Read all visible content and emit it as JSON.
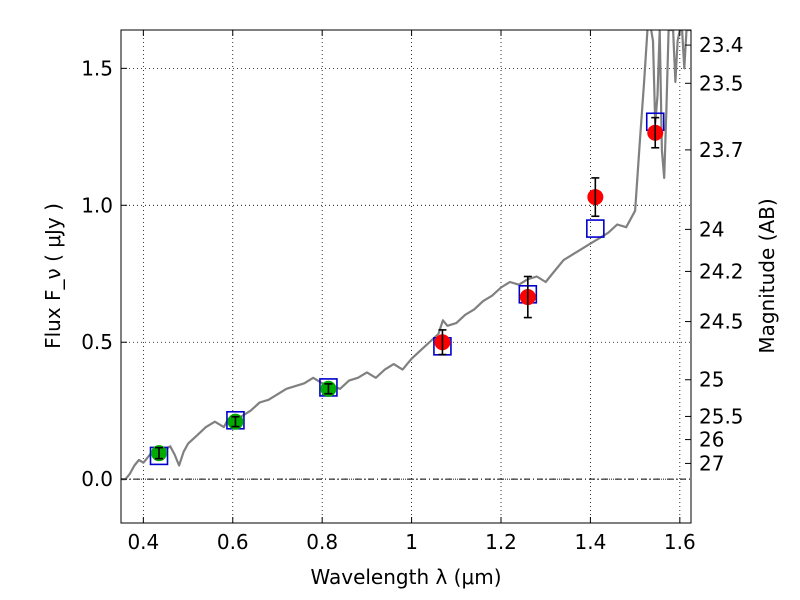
{
  "chart_data": {
    "type": "scatter",
    "xlabel": "Wavelength  λ (μm)",
    "ylabel": "Flux  F_ν  ( μJy )",
    "y2label": "Magnitude (AB)",
    "xlim": [
      0.35,
      1.625
    ],
    "ylim": [
      -0.16,
      1.64
    ],
    "grid": true,
    "x_ticks": [
      {
        "value": 0.4,
        "label": "0.4"
      },
      {
        "value": 0.6,
        "label": "0.6"
      },
      {
        "value": 0.8,
        "label": "0.8"
      },
      {
        "value": 1.0,
        "label": "1"
      },
      {
        "value": 1.2,
        "label": "1.2"
      },
      {
        "value": 1.4,
        "label": "1.4"
      },
      {
        "value": 1.6,
        "label": "1.6"
      }
    ],
    "y_ticks": [
      {
        "value": 0.0,
        "label": "0.0"
      },
      {
        "value": 0.5,
        "label": "0.5"
      },
      {
        "value": 1.0,
        "label": "1.0"
      },
      {
        "value": 1.5,
        "label": "1.5"
      }
    ],
    "mag_ticks": [
      {
        "value": 23.4,
        "label": "23.4"
      },
      {
        "value": 23.5,
        "label": "23.5"
      },
      {
        "value": 23.7,
        "label": "23.7"
      },
      {
        "value": 24.0,
        "label": "24"
      },
      {
        "value": 24.2,
        "label": "24.2"
      },
      {
        "value": 24.5,
        "label": "24.5"
      },
      {
        "value": 25.0,
        "label": "25"
      },
      {
        "value": 25.5,
        "label": "25.5"
      },
      {
        "value": 26.0,
        "label": "26"
      },
      {
        "value": 27.0,
        "label": "27"
      }
    ],
    "series": [
      {
        "kind": "model-spectrum",
        "color": "#808080",
        "x": [
          0.35,
          0.36,
          0.37,
          0.38,
          0.39,
          0.4,
          0.41,
          0.42,
          0.43,
          0.44,
          0.45,
          0.46,
          0.47,
          0.48,
          0.49,
          0.5,
          0.52,
          0.54,
          0.56,
          0.58,
          0.59,
          0.6,
          0.61,
          0.62,
          0.64,
          0.66,
          0.68,
          0.7,
          0.72,
          0.74,
          0.76,
          0.78,
          0.8,
          0.82,
          0.84,
          0.86,
          0.88,
          0.9,
          0.92,
          0.94,
          0.96,
          0.98,
          1.0,
          1.02,
          1.04,
          1.06,
          1.07,
          1.08,
          1.1,
          1.12,
          1.14,
          1.16,
          1.18,
          1.2,
          1.22,
          1.24,
          1.26,
          1.28,
          1.3,
          1.32,
          1.34,
          1.36,
          1.38,
          1.4,
          1.42,
          1.44,
          1.46,
          1.48,
          1.5,
          1.51,
          1.52,
          1.53,
          1.54,
          1.545,
          1.55,
          1.555,
          1.56,
          1.565,
          1.57,
          1.575,
          1.58,
          1.585,
          1.59,
          1.595,
          1.6,
          1.605,
          1.61,
          1.615,
          1.62,
          1.625
        ],
        "y": [
          0.0,
          0.0,
          0.02,
          0.05,
          0.07,
          0.06,
          0.08,
          0.1,
          0.09,
          0.11,
          0.11,
          0.12,
          0.09,
          0.05,
          0.1,
          0.13,
          0.16,
          0.19,
          0.21,
          0.19,
          0.22,
          0.22,
          0.2,
          0.23,
          0.25,
          0.28,
          0.29,
          0.31,
          0.33,
          0.34,
          0.35,
          0.37,
          0.35,
          0.34,
          0.33,
          0.36,
          0.37,
          0.39,
          0.37,
          0.4,
          0.42,
          0.4,
          0.44,
          0.47,
          0.5,
          0.53,
          0.58,
          0.56,
          0.57,
          0.6,
          0.62,
          0.65,
          0.67,
          0.7,
          0.72,
          0.71,
          0.73,
          0.74,
          0.72,
          0.76,
          0.8,
          0.82,
          0.84,
          0.86,
          0.88,
          0.9,
          0.93,
          0.92,
          0.98,
          1.22,
          1.45,
          1.7,
          1.6,
          1.3,
          1.4,
          1.64,
          1.2,
          1.1,
          1.35,
          1.64,
          1.64,
          1.64,
          1.45,
          1.6,
          1.64,
          1.64,
          1.5,
          1.64,
          1.64,
          1.64
        ]
      },
      {
        "kind": "model-photometry",
        "marker": "open-square",
        "color": "#0000cc",
        "x": [
          0.435,
          0.606,
          0.814,
          1.069,
          1.26,
          1.411,
          1.545
        ],
        "y": [
          0.085,
          0.215,
          0.335,
          0.485,
          0.675,
          0.915,
          1.305
        ]
      },
      {
        "kind": "observed-optical",
        "marker": "filled-circle",
        "color": "#00aa00",
        "x": [
          0.435,
          0.606,
          0.814
        ],
        "y": [
          0.095,
          0.21,
          0.33
        ],
        "yerr": [
          0.02,
          0.018,
          0.018
        ]
      },
      {
        "kind": "observed-infrared",
        "marker": "filled-circle",
        "color": "#ff0000",
        "x": [
          1.069,
          1.26,
          1.411,
          1.545
        ],
        "y": [
          0.5,
          0.665,
          1.03,
          1.265
        ],
        "yerr": [
          0.045,
          0.075,
          0.07,
          0.055
        ]
      }
    ]
  }
}
